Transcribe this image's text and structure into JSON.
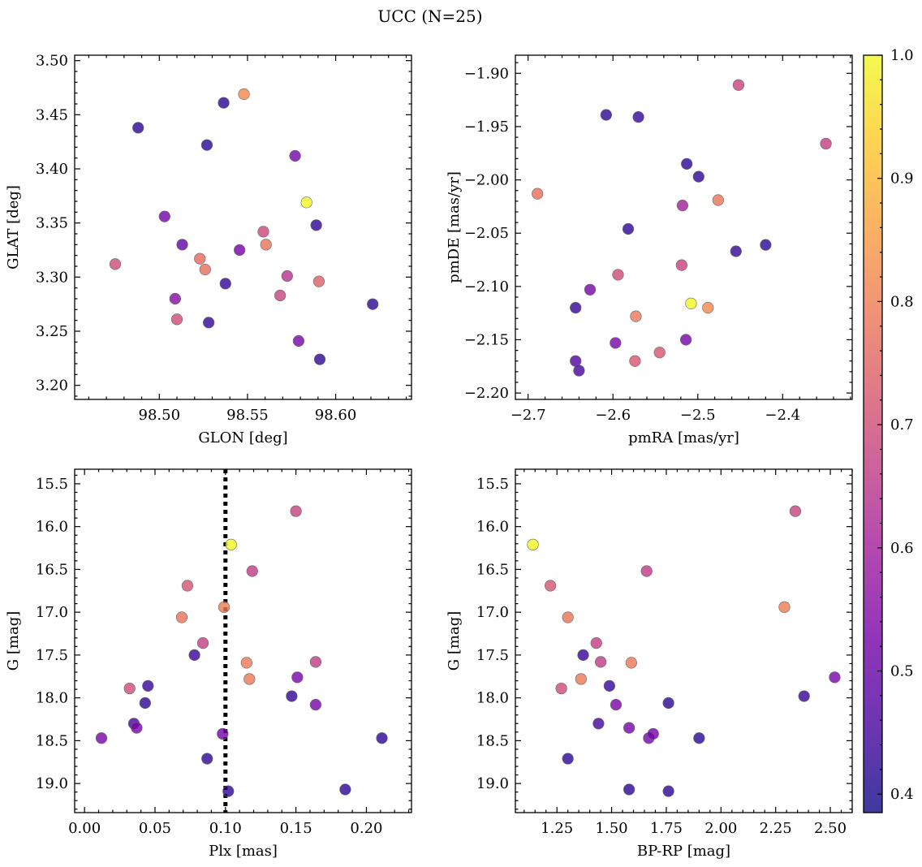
{
  "figure": {
    "title": "UCC (N=25)"
  },
  "colorbar": {
    "cmap": [
      "#0d0887",
      "#46039f",
      "#7201a8",
      "#9c179e",
      "#bd3786",
      "#d8576b",
      "#ed7953",
      "#fb9f3a",
      "#fdca26",
      "#f0f921"
    ],
    "alpha": 0.8,
    "range": [
      0.385,
      1.0
    ],
    "ticks": [
      0.4,
      0.5,
      0.6,
      0.7,
      0.8,
      0.9,
      1.0
    ],
    "tick_labels": [
      "0.4",
      "0.5",
      "0.6",
      "0.7",
      "0.8",
      "0.9",
      "1.0"
    ]
  },
  "chart_data": [
    {
      "type": "scatter",
      "xlabel": "GLON [deg]",
      "ylabel": "GLAT [deg]",
      "xlim": [
        98.452,
        98.643
      ],
      "ylim": [
        3.187,
        3.505
      ],
      "x_ticks": [
        98.5,
        98.55,
        98.6
      ],
      "x_tick_labels": [
        "98.50",
        "98.55",
        "98.60"
      ],
      "y_ticks": [
        3.2,
        3.25,
        3.3,
        3.35,
        3.4,
        3.45,
        3.5
      ],
      "y_tick_labels": [
        "3.20",
        "3.25",
        "3.30",
        "3.35",
        "3.40",
        "3.45",
        "3.50"
      ],
      "x": [
        98.475,
        98.488,
        98.503,
        98.509,
        98.51,
        98.513,
        98.523,
        98.526,
        98.527,
        98.528,
        98.5365,
        98.5375,
        98.5455,
        98.548,
        98.559,
        98.5605,
        98.5685,
        98.5725,
        98.577,
        98.579,
        98.5835,
        98.589,
        98.5905,
        98.591,
        98.621
      ],
      "y": [
        3.312,
        3.438,
        3.356,
        3.28,
        3.261,
        3.33,
        3.317,
        3.307,
        3.422,
        3.258,
        3.461,
        3.294,
        3.325,
        3.469,
        3.342,
        3.33,
        3.283,
        3.301,
        3.412,
        3.241,
        3.369,
        3.348,
        3.296,
        3.224,
        3.275
      ],
      "c": [
        0.7,
        0.42,
        0.52,
        0.55,
        0.7,
        0.5,
        0.76,
        0.77,
        0.42,
        0.43,
        0.42,
        0.43,
        0.52,
        0.82,
        0.69,
        0.78,
        0.68,
        0.64,
        0.53,
        0.53,
        1.0,
        0.42,
        0.74,
        0.42,
        0.42
      ]
    },
    {
      "type": "scatter",
      "xlabel": "pmRA [mas/yr]",
      "ylabel": "pmDE [mas/yr]",
      "xlim": [
        -2.715,
        -2.318
      ],
      "ylim": [
        -2.206,
        -1.883
      ],
      "x_ticks": [
        -2.7,
        -2.6,
        -2.5,
        -2.4
      ],
      "x_tick_labels": [
        "−2.7",
        "−2.6",
        "−2.5",
        "−2.4"
      ],
      "y_ticks": [
        -2.2,
        -2.15,
        -2.1,
        -2.05,
        -2.0,
        -1.95,
        -1.9
      ],
      "y_tick_labels": [
        "−2.20",
        "−2.15",
        "−2.10",
        "−2.05",
        "−2.00",
        "−1.95",
        "−1.90"
      ],
      "x": [
        -2.452,
        -2.608,
        -2.57,
        -2.349,
        -2.513,
        -2.499,
        -2.689,
        -2.476,
        -2.518,
        -2.582,
        -2.42,
        -2.455,
        -2.519,
        -2.594,
        -2.627,
        -2.508,
        -2.644,
        -2.573,
        -2.488,
        -2.597,
        -2.514,
        -2.545,
        -2.574,
        -2.644,
        -2.64
      ],
      "y": [
        -1.911,
        -1.939,
        -1.941,
        -1.966,
        -1.985,
        -1.997,
        -2.013,
        -2.019,
        -2.024,
        -2.046,
        -2.061,
        -2.067,
        -2.08,
        -2.089,
        -2.103,
        -2.116,
        -2.12,
        -2.128,
        -2.12,
        -2.153,
        -2.15,
        -2.162,
        -2.17,
        -2.17,
        -2.179
      ],
      "c": [
        0.68,
        0.42,
        0.43,
        0.67,
        0.42,
        0.42,
        0.77,
        0.78,
        0.6,
        0.42,
        0.42,
        0.43,
        0.68,
        0.7,
        0.53,
        1.0,
        0.43,
        0.79,
        0.82,
        0.53,
        0.53,
        0.72,
        0.72,
        0.47,
        0.45
      ]
    },
    {
      "type": "scatter",
      "xlabel": "Plx [mas]",
      "ylabel": "G [mag]",
      "y_inverted": true,
      "vline": 0.1,
      "xlim": [
        -0.007,
        0.232
      ],
      "ylim": [
        19.34,
        15.33
      ],
      "x_ticks": [
        0.0,
        0.05,
        0.1,
        0.15,
        0.2
      ],
      "x_tick_labels": [
        "0.00",
        "0.05",
        "0.10",
        "0.15",
        "0.20"
      ],
      "y_ticks": [
        15.5,
        16.0,
        16.5,
        17.0,
        17.5,
        18.0,
        18.5,
        19.0
      ],
      "y_tick_labels": [
        "15.5",
        "16.0",
        "16.5",
        "17.0",
        "17.5",
        "18.0",
        "18.5",
        "19.0"
      ],
      "x": [
        0.15,
        0.104,
        0.119,
        0.073,
        0.099,
        0.069,
        0.084,
        0.078,
        0.115,
        0.164,
        0.117,
        0.151,
        0.032,
        0.045,
        0.147,
        0.043,
        0.164,
        0.035,
        0.037,
        0.012,
        0.098,
        0.211,
        0.087,
        0.185,
        0.102
      ],
      "y": [
        15.82,
        16.21,
        16.52,
        16.69,
        16.94,
        17.06,
        17.36,
        17.5,
        17.59,
        17.58,
        17.78,
        17.76,
        17.89,
        17.86,
        17.98,
        18.06,
        18.08,
        18.3,
        18.35,
        18.47,
        18.42,
        18.47,
        18.71,
        19.07,
        19.09
      ],
      "c": [
        0.68,
        1.0,
        0.66,
        0.72,
        0.8,
        0.78,
        0.67,
        0.43,
        0.79,
        0.66,
        0.79,
        0.53,
        0.7,
        0.43,
        0.43,
        0.42,
        0.53,
        0.45,
        0.53,
        0.53,
        0.52,
        0.42,
        0.42,
        0.42,
        0.42
      ]
    },
    {
      "type": "scatter",
      "xlabel": "BP-RP [mag]",
      "ylabel": "G [mag]",
      "y_inverted": true,
      "xlim": [
        1.06,
        2.6
      ],
      "ylim": [
        19.34,
        15.33
      ],
      "x_ticks": [
        1.25,
        1.5,
        1.75,
        2.0,
        2.25,
        2.5
      ],
      "x_tick_labels": [
        "1.25",
        "1.50",
        "1.75",
        "2.00",
        "2.25",
        "2.50"
      ],
      "y_ticks": [
        15.5,
        16.0,
        16.5,
        17.0,
        17.5,
        18.0,
        18.5,
        19.0
      ],
      "y_tick_labels": [
        "15.5",
        "16.0",
        "16.5",
        "17.0",
        "17.5",
        "18.0",
        "18.5",
        "19.0"
      ],
      "x": [
        2.34,
        1.14,
        1.66,
        1.22,
        2.29,
        1.3,
        1.43,
        1.37,
        1.59,
        1.45,
        1.36,
        2.52,
        1.27,
        1.49,
        2.38,
        1.76,
        1.52,
        1.44,
        1.58,
        1.67,
        1.69,
        1.9,
        1.3,
        1.58,
        1.76
      ],
      "y": [
        15.82,
        16.21,
        16.52,
        16.69,
        16.94,
        17.06,
        17.36,
        17.5,
        17.59,
        17.58,
        17.78,
        17.76,
        17.89,
        17.86,
        17.98,
        18.06,
        18.08,
        18.3,
        18.35,
        18.47,
        18.42,
        18.47,
        18.71,
        19.07,
        19.09
      ],
      "c": [
        0.68,
        1.0,
        0.66,
        0.72,
        0.8,
        0.78,
        0.67,
        0.43,
        0.79,
        0.66,
        0.79,
        0.53,
        0.7,
        0.43,
        0.43,
        0.42,
        0.53,
        0.45,
        0.53,
        0.53,
        0.52,
        0.42,
        0.42,
        0.42,
        0.42
      ]
    }
  ]
}
